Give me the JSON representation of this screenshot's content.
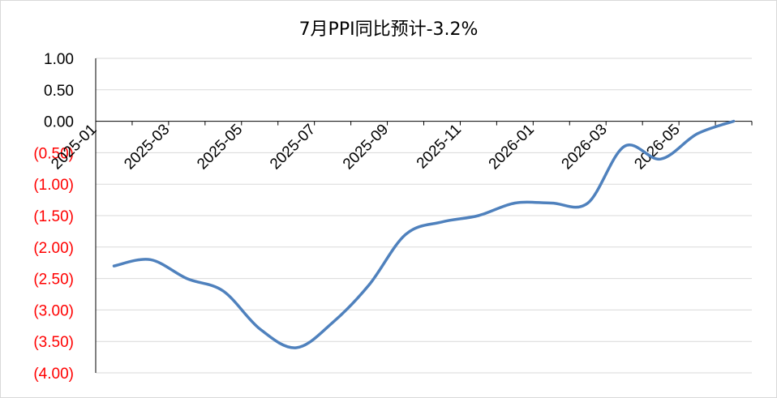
{
  "chart_data": {
    "type": "line",
    "title": "7月PPI同比预计-3.2%",
    "xlabel": "",
    "ylabel": "",
    "ylim": [
      -4.0,
      1.0
    ],
    "yticks": [
      {
        "value": 1.0,
        "label": "1.00"
      },
      {
        "value": 0.5,
        "label": "0.50"
      },
      {
        "value": 0.0,
        "label": "0.00"
      },
      {
        "value": -0.5,
        "label": "(0.50)"
      },
      {
        "value": -1.0,
        "label": "(1.00)"
      },
      {
        "value": -1.5,
        "label": "(1.50)"
      },
      {
        "value": -2.0,
        "label": "(2.00)"
      },
      {
        "value": -2.5,
        "label": "(2.50)"
      },
      {
        "value": -3.0,
        "label": "(3.00)"
      },
      {
        "value": -3.5,
        "label": "(3.50)"
      },
      {
        "value": -4.0,
        "label": "(4.00)"
      }
    ],
    "xtick_labels": [
      "2025-01",
      "2025-03",
      "2025-05",
      "2025-07",
      "2025-09",
      "2025-11",
      "2026-01",
      "2026-03",
      "2026-05"
    ],
    "x": [
      "2025-01",
      "2025-02",
      "2025-03",
      "2025-04",
      "2025-05",
      "2025-06",
      "2025-07",
      "2025-08",
      "2025-09",
      "2025-10",
      "2025-11",
      "2025-12",
      "2026-01",
      "2026-02",
      "2026-03",
      "2026-04",
      "2026-05",
      "2026-06"
    ],
    "series": [
      {
        "values": [
          -2.3,
          -2.2,
          -2.5,
          -2.7,
          -3.3,
          -3.6,
          -3.2,
          -2.6,
          -1.8,
          -1.6,
          -1.5,
          -1.3,
          -1.3,
          -1.3,
          -0.4,
          -0.6,
          -0.2,
          0.0
        ],
        "color": "#4f81bd"
      }
    ],
    "negative_label_color": "#ff0000",
    "positive_label_color": "#000000",
    "grid": true,
    "legend": "none"
  }
}
